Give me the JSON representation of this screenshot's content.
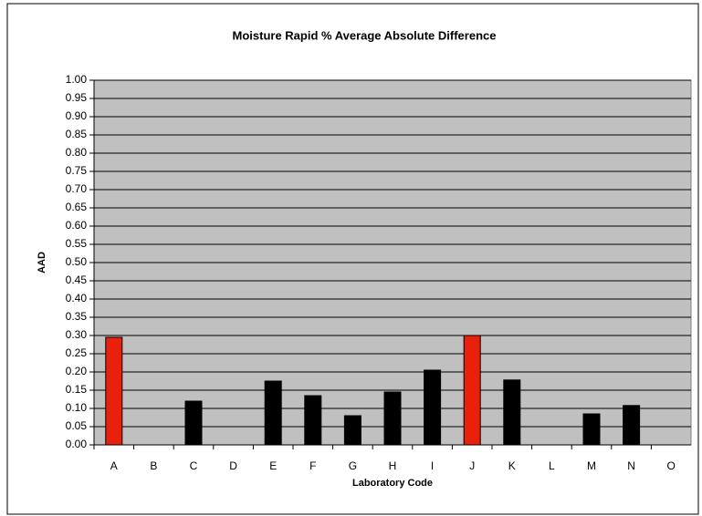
{
  "chart_data": {
    "type": "bar",
    "title": "Moisture Rapid % Average Absolute Difference",
    "x_label": "Laboratory Code",
    "y_label": "AAD",
    "categories": [
      "A",
      "B",
      "C",
      "D",
      "E",
      "F",
      "G",
      "H",
      "I",
      "J",
      "K",
      "L",
      "M",
      "N",
      "O"
    ],
    "values": [
      0.295,
      null,
      0.12,
      null,
      0.175,
      0.135,
      0.08,
      0.145,
      0.205,
      0.3,
      0.178,
      null,
      0.085,
      0.108,
      null
    ],
    "color": "#000000",
    "highlight_color": "#e8200c",
    "highlight": [
      "A",
      "J"
    ],
    "ylim": [
      0,
      1
    ],
    "yticks": [
      {
        "value": 0,
        "label": "0.00"
      },
      {
        "value": 0.05,
        "label": "0.05"
      },
      {
        "value": 0.1,
        "label": "0.10"
      },
      {
        "value": 0.15,
        "label": "0.15"
      },
      {
        "value": 0.2,
        "label": "0.20"
      },
      {
        "value": 0.25,
        "label": "0.25"
      },
      {
        "value": 0.3,
        "label": "0.30"
      },
      {
        "value": 0.35,
        "label": "0.35"
      },
      {
        "value": 0.4,
        "label": "0.40"
      },
      {
        "value": 0.45,
        "label": "0.45"
      },
      {
        "value": 0.5,
        "label": "0.50"
      },
      {
        "value": 0.55,
        "label": "0.55"
      },
      {
        "value": 0.6,
        "label": "0.60"
      },
      {
        "value": 0.65,
        "label": "0.65"
      },
      {
        "value": 0.7,
        "label": "0.70"
      },
      {
        "value": 0.75,
        "label": "0.75"
      },
      {
        "value": 0.8,
        "label": "0.80"
      },
      {
        "value": 0.85,
        "label": "0.85"
      },
      {
        "value": 0.9,
        "label": "0.90"
      },
      {
        "value": 0.95,
        "label": "0.95"
      },
      {
        "value": 1,
        "label": "1.00"
      }
    ],
    "grid": true
  }
}
